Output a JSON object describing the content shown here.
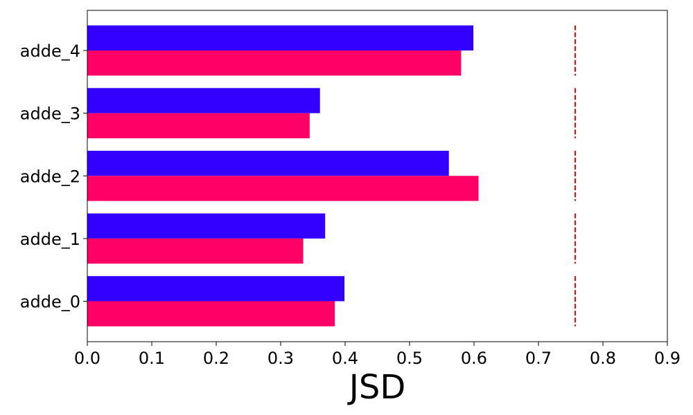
{
  "chart_data": {
    "type": "bar",
    "orientation": "horizontal",
    "categories": [
      "adde_0",
      "adde_1",
      "adde_2",
      "adde_3",
      "adde_4"
    ],
    "series": [
      {
        "color": "#3300ff",
        "values": [
          0.399,
          0.369,
          0.561,
          0.361,
          0.599
        ]
      },
      {
        "color": "#ff0066",
        "values": [
          0.384,
          0.335,
          0.607,
          0.345,
          0.58
        ]
      }
    ],
    "reference_line": {
      "value": 0.757,
      "color": "#ff0000",
      "style": "dashed"
    },
    "xlabel": "JSD",
    "ylabel": "",
    "xlim": [
      0,
      0.9
    ],
    "xticks": [
      "0.0",
      "0.1",
      "0.2",
      "0.3",
      "0.4",
      "0.5",
      "0.6",
      "0.7",
      "0.8",
      "0.9"
    ],
    "grid": false,
    "legend": "none"
  }
}
